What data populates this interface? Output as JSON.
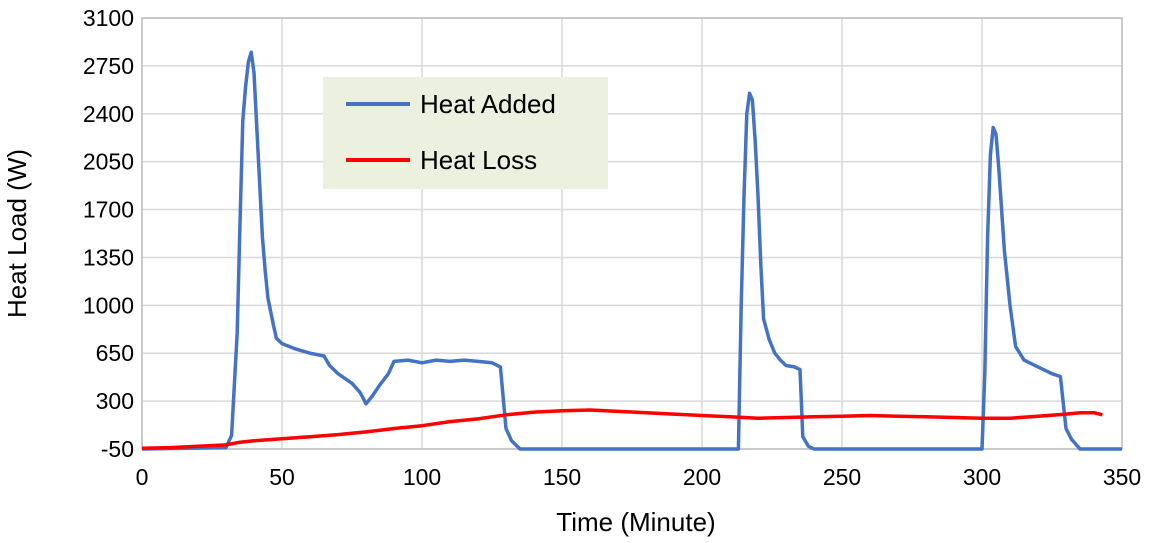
{
  "chart_data": {
    "type": "line",
    "xlabel": "Time (Minute)",
    "ylabel": "Heat Load (W)",
    "xlim": [
      0,
      350
    ],
    "ylim": [
      -50,
      3100
    ],
    "x_ticks": [
      "0",
      "50",
      "100",
      "150",
      "200",
      "250",
      "300",
      "350"
    ],
    "y_ticks": [
      "-50",
      "300",
      "650",
      "1000",
      "1350",
      "1700",
      "2050",
      "2400",
      "2750",
      "3100"
    ],
    "grid": true,
    "legend_position": "top-left (inside plot)",
    "series": [
      {
        "name": "Heat Added",
        "color": "#4472C4",
        "x": [
          0,
          30,
          32,
          34,
          35,
          36,
          37,
          38,
          39,
          40,
          41,
          42,
          43,
          44,
          45,
          46,
          47,
          48,
          50,
          55,
          60,
          65,
          67,
          70,
          75,
          78,
          80,
          82,
          85,
          88,
          90,
          95,
          100,
          105,
          110,
          115,
          120,
          125,
          128,
          130,
          132,
          135,
          150,
          200,
          213,
          214,
          215,
          216,
          217,
          218,
          219,
          220,
          221,
          222,
          224,
          226,
          228,
          230,
          233,
          235,
          236,
          238,
          240,
          250,
          300,
          301,
          302,
          303,
          304,
          305,
          306,
          307,
          308,
          310,
          312,
          315,
          320,
          325,
          328,
          330,
          332,
          335,
          350
        ],
        "y": [
          -50,
          -40,
          50,
          800,
          1600,
          2350,
          2600,
          2780,
          2850,
          2700,
          2300,
          1900,
          1500,
          1250,
          1050,
          950,
          850,
          760,
          720,
          680,
          650,
          630,
          560,
          500,
          430,
          360,
          280,
          330,
          420,
          500,
          590,
          600,
          580,
          600,
          590,
          600,
          590,
          580,
          550,
          100,
          10,
          -50,
          -50,
          -50,
          -50,
          1000,
          1800,
          2400,
          2550,
          2500,
          2200,
          1800,
          1300,
          900,
          750,
          650,
          600,
          560,
          550,
          530,
          40,
          -30,
          -50,
          -50,
          -50,
          500,
          1500,
          2100,
          2300,
          2250,
          2000,
          1700,
          1400,
          1000,
          700,
          600,
          550,
          500,
          480,
          100,
          20,
          -50,
          -50
        ]
      },
      {
        "name": "Heat Loss",
        "color": "#FF0000",
        "x": [
          0,
          10,
          20,
          30,
          35,
          40,
          50,
          60,
          70,
          80,
          90,
          100,
          110,
          120,
          130,
          140,
          150,
          160,
          170,
          180,
          190,
          200,
          210,
          220,
          230,
          240,
          250,
          260,
          270,
          280,
          290,
          300,
          310,
          320,
          330,
          335,
          340,
          343
        ],
        "y": [
          -45,
          -40,
          -30,
          -20,
          0,
          10,
          25,
          40,
          55,
          75,
          100,
          120,
          150,
          170,
          200,
          220,
          230,
          235,
          225,
          215,
          205,
          195,
          185,
          175,
          180,
          185,
          190,
          195,
          190,
          185,
          180,
          175,
          175,
          190,
          205,
          215,
          215,
          200
        ]
      }
    ]
  }
}
